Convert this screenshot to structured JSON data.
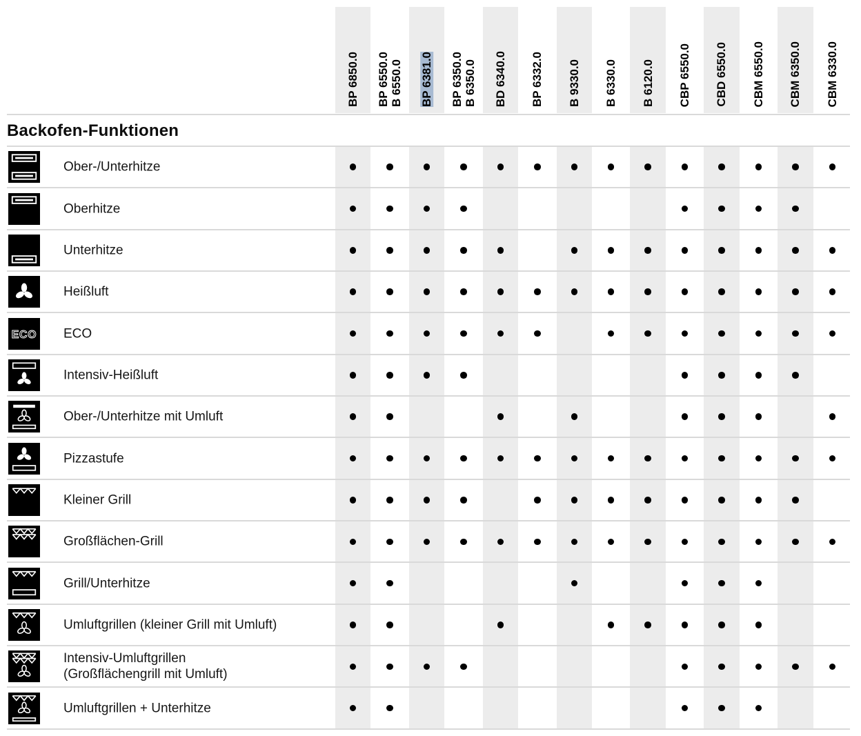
{
  "section_title": "Backofen-Funktionen",
  "colors": {
    "column_stripe": "#ececec",
    "grid_line": "#d9d9d9",
    "selection_highlight": "#a7bad2",
    "icon_background": "#000000",
    "icon_glyph": "#ffffff",
    "dot": "#000000"
  },
  "availability_marker": "•",
  "columns": [
    {
      "lines": [
        "BP 6850.0"
      ],
      "highlighted": false
    },
    {
      "lines": [
        "BP 6550.0",
        "B 6550.0"
      ],
      "highlighted": false
    },
    {
      "lines": [
        "BP 6381.0"
      ],
      "highlighted": true
    },
    {
      "lines": [
        "BP 6350.0",
        "B 6350.0"
      ],
      "highlighted": false
    },
    {
      "lines": [
        "BD 6340.0"
      ],
      "highlighted": false
    },
    {
      "lines": [
        "BP 6332.0"
      ],
      "highlighted": false
    },
    {
      "lines": [
        "B 9330.0"
      ],
      "highlighted": false
    },
    {
      "lines": [
        "B 6330.0"
      ],
      "highlighted": false
    },
    {
      "lines": [
        "B 6120.0"
      ],
      "highlighted": false
    },
    {
      "lines": [
        "CBP 6550.0"
      ],
      "highlighted": false
    },
    {
      "lines": [
        "CBD 6550.0"
      ],
      "highlighted": false
    },
    {
      "lines": [
        "CBM 6550.0"
      ],
      "highlighted": false
    },
    {
      "lines": [
        "CBM 6350.0"
      ],
      "highlighted": false
    },
    {
      "lines": [
        "CBM 6330.0"
      ],
      "highlighted": false
    }
  ],
  "rows": [
    {
      "label": "Ober-/Unterhitze",
      "icon": "top-bottom-heat",
      "availability": [
        1,
        1,
        1,
        1,
        1,
        1,
        1,
        1,
        1,
        1,
        1,
        1,
        1,
        1
      ]
    },
    {
      "label": "Oberhitze",
      "icon": "top-heat",
      "availability": [
        1,
        1,
        1,
        1,
        0,
        0,
        0,
        0,
        0,
        1,
        1,
        1,
        1,
        0
      ]
    },
    {
      "label": "Unterhitze",
      "icon": "bottom-heat",
      "availability": [
        1,
        1,
        1,
        1,
        1,
        0,
        1,
        1,
        1,
        1,
        1,
        1,
        1,
        1
      ]
    },
    {
      "label": "Heißluft",
      "icon": "hot-air-fan",
      "availability": [
        1,
        1,
        1,
        1,
        1,
        1,
        1,
        1,
        1,
        1,
        1,
        1,
        1,
        1
      ]
    },
    {
      "label": "ECO",
      "icon": "eco",
      "availability": [
        1,
        1,
        1,
        1,
        1,
        1,
        0,
        1,
        1,
        1,
        1,
        1,
        1,
        1
      ]
    },
    {
      "label": "Intensiv-Heißluft",
      "icon": "intensive-hot-air",
      "availability": [
        1,
        1,
        1,
        1,
        0,
        0,
        0,
        0,
        0,
        1,
        1,
        1,
        1,
        0
      ]
    },
    {
      "label": "Ober-/Unterhitze mit Umluft",
      "icon": "top-bottom-heat-circulation",
      "availability": [
        1,
        1,
        0,
        0,
        1,
        0,
        1,
        0,
        0,
        1,
        1,
        1,
        0,
        1
      ]
    },
    {
      "label": "Pizzastufe",
      "icon": "pizza-level",
      "availability": [
        1,
        1,
        1,
        1,
        1,
        1,
        1,
        1,
        1,
        1,
        1,
        1,
        1,
        1
      ]
    },
    {
      "label": "Kleiner Grill",
      "icon": "small-grill",
      "availability": [
        1,
        1,
        1,
        1,
        0,
        1,
        1,
        1,
        1,
        1,
        1,
        1,
        1,
        0
      ]
    },
    {
      "label": "Großflächen-Grill",
      "icon": "large-grill",
      "availability": [
        1,
        1,
        1,
        1,
        1,
        1,
        1,
        1,
        1,
        1,
        1,
        1,
        1,
        1
      ]
    },
    {
      "label": "Grill/Unterhitze",
      "icon": "grill-bottom-heat",
      "availability": [
        1,
        1,
        0,
        0,
        0,
        0,
        1,
        0,
        0,
        1,
        1,
        1,
        0,
        0
      ]
    },
    {
      "label": "Umluftgrillen (kleiner Grill mit Umluft)",
      "icon": "circulation-grill-small",
      "availability": [
        1,
        1,
        0,
        0,
        1,
        0,
        0,
        1,
        1,
        1,
        1,
        1,
        0,
        0
      ]
    },
    {
      "label": "Intensiv-Umluftgrillen",
      "label_line2": "(Großflächengrill mit Umluft)",
      "icon": "circulation-grill-large",
      "availability": [
        1,
        1,
        1,
        1,
        0,
        0,
        0,
        0,
        0,
        1,
        1,
        1,
        1,
        1
      ]
    },
    {
      "label": "Umluftgrillen + Unterhitze",
      "icon": "circulation-grill-bottom-heat",
      "availability": [
        1,
        1,
        0,
        0,
        0,
        0,
        0,
        0,
        0,
        1,
        1,
        1,
        0,
        0
      ]
    }
  ]
}
